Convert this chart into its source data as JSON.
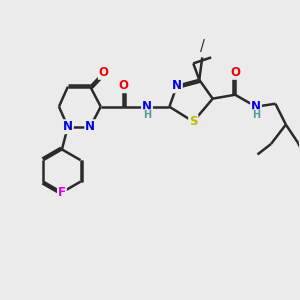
{
  "background_color": "#ebebeb",
  "bond_color": "#2a2a2a",
  "bond_width": 1.8,
  "atom_colors": {
    "N": "#0000ee",
    "O": "#ee0000",
    "S": "#bbbb00",
    "F": "#dd00dd",
    "C": "#2a2a2a",
    "H": "#5a9a9a"
  },
  "font_size": 8.5,
  "fig_size": [
    3.0,
    3.0
  ],
  "dpi": 100
}
